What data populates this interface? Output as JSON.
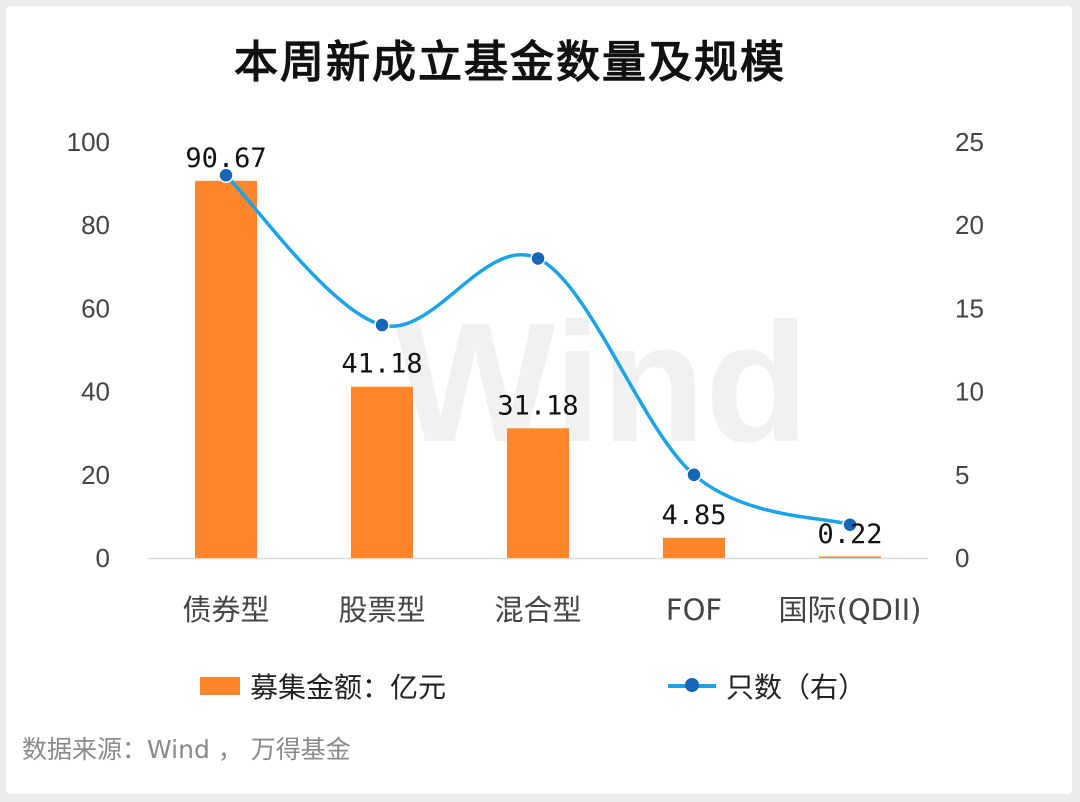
{
  "title": "本周新成立基金数量及规模",
  "watermark": "Wind",
  "source": "数据来源：Wind ， 万得基金",
  "legend": {
    "bar_label": "募集金额：亿元",
    "line_label": "只数（右）"
  },
  "colors": {
    "bar": "#ff862b",
    "line": "#1aa3e8",
    "marker": "#1565b8"
  },
  "chart_data": {
    "type": "bar",
    "title": "本周新成立基金数量及规模",
    "categories": [
      "债券型",
      "股票型",
      "混合型",
      "FOF",
      "国际(QDII)"
    ],
    "series": [
      {
        "name": "募集金额：亿元",
        "type": "bar",
        "axis": "left",
        "values": [
          90.67,
          41.18,
          31.18,
          4.85,
          0.22
        ],
        "data_labels": [
          "90.67",
          "41.18",
          "31.18",
          "4.85",
          "0.22"
        ]
      },
      {
        "name": "只数（右）",
        "type": "line",
        "axis": "right",
        "smooth": true,
        "values": [
          23,
          14,
          18,
          5,
          2
        ]
      }
    ],
    "y_left": {
      "min": 0,
      "max": 100,
      "ticks": [
        "0",
        "20",
        "40",
        "60",
        "80",
        "100"
      ]
    },
    "y_right": {
      "min": 0,
      "max": 25,
      "ticks": [
        "0",
        "5",
        "10",
        "15",
        "20",
        "25"
      ]
    },
    "grid": false,
    "legend_position": "bottom"
  }
}
